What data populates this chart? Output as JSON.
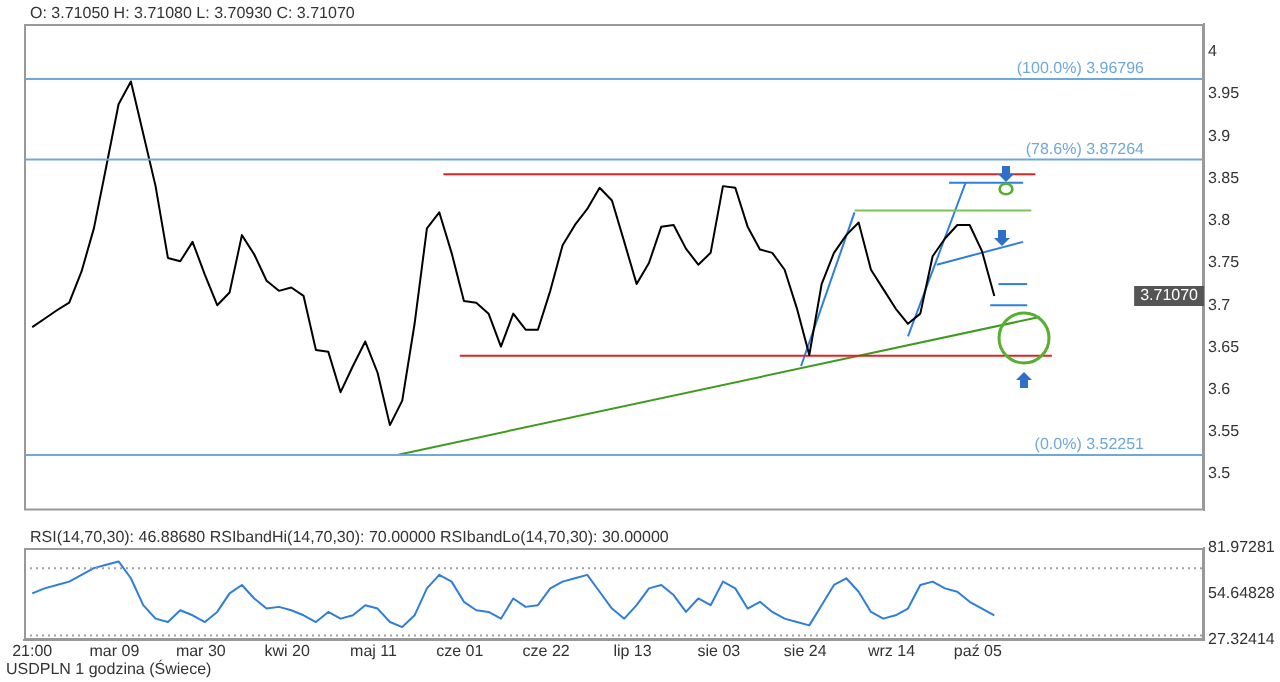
{
  "chart_data": [
    {
      "type": "line",
      "title": "O: 3.71050 H: 3.71080 L: 3.70930 C: 3.71070",
      "xlim": [
        "--02-15",
        "--11-29"
      ],
      "ylim": [
        3.457,
        4.033
      ],
      "yticks": [
        3.5,
        3.55,
        3.6,
        3.65,
        3.7,
        3.75,
        3.8,
        3.85,
        3.9,
        3.95,
        4
      ],
      "tick_labels": "y",
      "grid": false,
      "legend": false,
      "marker": "none",
      "line_style": "solid",
      "series": [
        {
          "color": "#000000",
          "x": [
            "--02-17",
            "--02-20",
            "--02-23",
            "--02-26",
            "--03-01",
            "--03-04",
            "--03-07",
            "--03-10",
            "--03-13",
            "--03-16",
            "--03-19",
            "--03-22",
            "--03-25",
            "--03-28",
            "--03-31",
            "--04-03",
            "--04-06",
            "--04-09",
            "--04-12",
            "--04-15",
            "--04-18",
            "--04-21",
            "--04-24",
            "--04-27",
            "--04-30",
            "--05-03",
            "--05-06",
            "--05-09",
            "--05-12",
            "--05-15",
            "--05-18",
            "--05-21",
            "--05-24",
            "--05-27",
            "--05-30",
            "--06-02",
            "--06-05",
            "--06-08",
            "--06-11",
            "--06-14",
            "--06-17",
            "--06-20",
            "--06-23",
            "--06-26",
            "--06-29",
            "--07-02",
            "--07-05",
            "--07-08",
            "--07-11",
            "--07-14",
            "--07-17",
            "--07-20",
            "--07-23",
            "--07-26",
            "--07-29",
            "--08-01",
            "--08-04",
            "--08-07",
            "--08-10",
            "--08-13",
            "--08-16",
            "--08-19",
            "--08-22",
            "--08-25",
            "--08-28",
            "--08-31",
            "--09-03",
            "--09-06",
            "--09-09",
            "--09-12",
            "--09-15",
            "--09-18",
            "--09-21",
            "--09-24",
            "--09-27",
            "--09-30",
            "--10-03",
            "--10-06",
            "--10-09"
          ],
          "values": [
            3.674,
            3.684,
            3.694,
            3.703,
            3.74,
            3.791,
            3.864,
            3.938,
            3.965,
            3.903,
            3.841,
            3.756,
            3.752,
            3.775,
            3.736,
            3.7,
            3.715,
            3.783,
            3.76,
            3.729,
            3.717,
            3.721,
            3.711,
            3.647,
            3.645,
            3.597,
            3.628,
            3.657,
            3.62,
            3.558,
            3.587,
            3.678,
            3.791,
            3.81,
            3.762,
            3.705,
            3.703,
            3.69,
            3.651,
            3.69,
            3.671,
            3.671,
            3.717,
            3.771,
            3.795,
            3.814,
            3.839,
            3.824,
            3.775,
            3.725,
            3.75,
            3.793,
            3.795,
            3.767,
            3.748,
            3.762,
            3.841,
            3.839,
            3.793,
            3.766,
            3.762,
            3.742,
            3.696,
            3.641,
            3.725,
            3.762,
            3.783,
            3.798,
            3.742,
            3.719,
            3.696,
            3.678,
            3.69,
            3.758,
            3.779,
            3.795,
            3.795,
            3.764,
            3.711
          ]
        },
        {
          "color": "#e02424",
          "x": [
            "--05-28",
            "--10-19"
          ],
          "values": [
            3.855,
            3.855
          ]
        },
        {
          "color": "#e02424",
          "x": [
            "--06-01",
            "--10-23"
          ],
          "values": [
            3.64,
            3.64
          ]
        },
        {
          "color": "#3f9b1f",
          "x": [
            "--05-17",
            "--10-20"
          ],
          "values": [
            3.523,
            3.686
          ]
        },
        {
          "color": "#7cc35a",
          "x": [
            "--09-05",
            "--10-18"
          ],
          "values": [
            3.812,
            3.812
          ]
        },
        {
          "color": "#2f7fd8",
          "x": [
            "--08-23",
            "--09-05"
          ],
          "values": [
            3.628,
            3.81
          ]
        },
        {
          "color": "#2f7fd8",
          "x": [
            "--09-18",
            "--10-02"
          ],
          "values": [
            3.663,
            3.845
          ]
        },
        {
          "color": "#2f7fd8",
          "x": [
            "--09-28",
            "--10-16"
          ],
          "values": [
            3.845,
            3.845
          ]
        },
        {
          "color": "#2f7fd8",
          "x": [
            "--09-25",
            "--10-16"
          ],
          "values": [
            3.748,
            3.775
          ]
        },
        {
          "color": "#2f7fd8",
          "x": [
            "--10-10",
            "--10-17"
          ],
          "values": [
            3.725,
            3.725
          ]
        },
        {
          "color": "#2f7fd8",
          "x": [
            "--10-08",
            "--10-17"
          ],
          "values": [
            3.7,
            3.7
          ]
        }
      ],
      "ref_lines": [
        {
          "axis": "y",
          "value": 3.96796,
          "label": "(100.0%) 3.96796",
          "color": "#6fa8dc",
          "line_style": "solid"
        },
        {
          "axis": "y",
          "value": 3.87264,
          "label": "(78.6%) 3.87264",
          "color": "#6fa8dc",
          "line_style": "solid"
        },
        {
          "axis": "y",
          "value": 3.52251,
          "label": "(0.0%) 3.52251",
          "color": "#6fa8dc",
          "line_style": "solid"
        }
      ],
      "annotations": [
        "3.71070"
      ]
    },
    {
      "type": "line",
      "title": "RSI(14,70,30): 46.88680 RSIbandHi(14,70,30): 70.00000 RSIbandLo(14,70,30): 30.00000",
      "xlim": [
        "--02-15",
        "--11-29"
      ],
      "xticks": [
        {
          "value": "--02-17",
          "label": "21:00"
        },
        {
          "value": "--03-09",
          "label": "mar 09"
        },
        {
          "value": "--03-30",
          "label": "mar 30"
        },
        {
          "value": "--04-20",
          "label": "kwi 20"
        },
        {
          "value": "--05-11",
          "label": "maj 11"
        },
        {
          "value": "--06-01",
          "label": "cze 01"
        },
        {
          "value": "--06-22",
          "label": "cze 22"
        },
        {
          "value": "--07-13",
          "label": "lip 13"
        },
        {
          "value": "--08-03",
          "label": "sie 03"
        },
        {
          "value": "--08-24",
          "label": "sie 24"
        },
        {
          "value": "--09-14",
          "label": "wrz 14"
        },
        {
          "value": "--10-05",
          "label": "paź 05"
        }
      ],
      "ylim": [
        27.32414,
        81.97281
      ],
      "yticks": [
        27.32414,
        54.64828,
        81.97281
      ],
      "grid": false,
      "legend": false,
      "marker": "none",
      "line_style": "solid",
      "ref_lines": [
        {
          "axis": "y",
          "value": 70,
          "color": "#a0a0a0",
          "line_style": "dotted"
        },
        {
          "axis": "y",
          "value": 30,
          "color": "#a0a0a0",
          "line_style": "dotted"
        }
      ],
      "series": [
        {
          "color": "#2f7fd8",
          "x": [
            "--02-17",
            "--02-20",
            "--02-23",
            "--02-26",
            "--03-01",
            "--03-04",
            "--03-07",
            "--03-10",
            "--03-13",
            "--03-16",
            "--03-19",
            "--03-22",
            "--03-25",
            "--03-28",
            "--03-31",
            "--04-03",
            "--04-06",
            "--04-09",
            "--04-12",
            "--04-15",
            "--04-18",
            "--04-21",
            "--04-24",
            "--04-27",
            "--04-30",
            "--05-03",
            "--05-06",
            "--05-09",
            "--05-12",
            "--05-15",
            "--05-18",
            "--05-21",
            "--05-24",
            "--05-27",
            "--05-30",
            "--06-02",
            "--06-05",
            "--06-08",
            "--06-11",
            "--06-14",
            "--06-17",
            "--06-20",
            "--06-23",
            "--06-26",
            "--06-29",
            "--07-02",
            "--07-05",
            "--07-08",
            "--07-11",
            "--07-14",
            "--07-17",
            "--07-20",
            "--07-23",
            "--07-26",
            "--07-29",
            "--08-01",
            "--08-04",
            "--08-07",
            "--08-10",
            "--08-13",
            "--08-16",
            "--08-19",
            "--08-22",
            "--08-25",
            "--08-28",
            "--08-31",
            "--09-03",
            "--09-06",
            "--09-09",
            "--09-12",
            "--09-15",
            "--09-18",
            "--09-21",
            "--09-24",
            "--09-27",
            "--09-30",
            "--10-03",
            "--10-06",
            "--10-09"
          ],
          "values": [
            55,
            58,
            60,
            62,
            66,
            70,
            72,
            74,
            64,
            48,
            40,
            38,
            45,
            42,
            38,
            44,
            55,
            60,
            52,
            46,
            47,
            45,
            42,
            38,
            44,
            40,
            42,
            48,
            46,
            38,
            35,
            42,
            58,
            66,
            62,
            50,
            45,
            44,
            40,
            52,
            47,
            48,
            58,
            62,
            64,
            66,
            56,
            46,
            40,
            48,
            58,
            60,
            54,
            44,
            52,
            48,
            62,
            58,
            46,
            50,
            44,
            40,
            38,
            36,
            48,
            60,
            64,
            56,
            44,
            40,
            42,
            46,
            60,
            62,
            58,
            56,
            50,
            46,
            42
          ]
        }
      ],
      "annotations": [
        "USDPLN 1 godzina (Świece)"
      ]
    }
  ]
}
